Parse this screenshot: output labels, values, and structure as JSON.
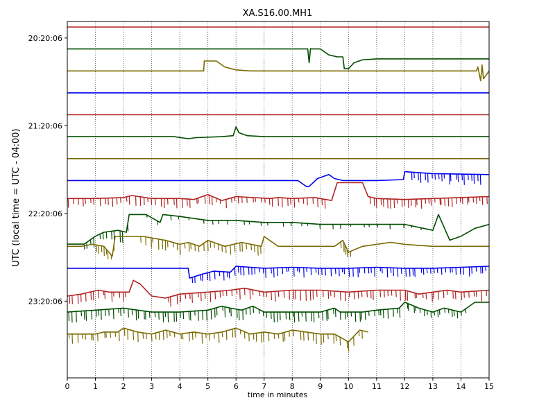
{
  "chart_data": {
    "type": "line",
    "title": "XA.S16.00.MH1",
    "xlabel": "time in minutes",
    "ylabel": "UTC (local time = UTC - 04:00)",
    "xlim": [
      0,
      15
    ],
    "x_ticks": [
      "0",
      "1",
      "2",
      "3",
      "4",
      "5",
      "6",
      "7",
      "8",
      "9",
      "10",
      "11",
      "12",
      "13",
      "14",
      "15"
    ],
    "y_ticks": [
      "20:20:06",
      "21:20:06",
      "22:20:06",
      "23:20:06"
    ],
    "y_tick_rows": [
      0.5,
      4.5,
      8.5,
      12.5
    ],
    "grid": "vertical dotted",
    "trace_colors": [
      "#b22222",
      "#004d00",
      "#7a6a00",
      "#0000ee"
    ],
    "traces": [
      {
        "start": "20:05:06",
        "color": "#b22222",
        "x_end": 15,
        "segments": [
          {
            "x": [
              0,
              15
            ],
            "y": [
              0,
              0
            ]
          }
        ],
        "noise": []
      },
      {
        "start": "20:20:06",
        "color": "#004d00",
        "x_end": 15,
        "segments": [
          {
            "x": [
              0,
              8.55,
              8.6,
              8.65,
              8.7,
              9.0,
              9.3,
              9.6,
              9.8,
              9.85,
              10.0,
              10.2,
              10.5,
              11,
              12,
              15
            ],
            "y": [
              0,
              0,
              -0.7,
              0.02,
              0,
              0,
              -0.3,
              -0.4,
              -0.4,
              -1.0,
              -1.0,
              -0.7,
              -0.55,
              -0.5,
              -0.5,
              -0.5
            ]
          }
        ],
        "noise": []
      },
      {
        "start": "20:35:06",
        "color": "#7a6a00",
        "x_end": 15,
        "segments": [
          {
            "x": [
              0,
              4.85,
              4.87,
              5.3,
              5.6,
              6.0,
              6.5,
              14.55,
              14.6,
              14.7,
              14.75,
              14.8,
              15
            ],
            "y": [
              0,
              0,
              0.5,
              0.5,
              0.2,
              0.05,
              0,
              0,
              0.2,
              -0.5,
              0.3,
              -0.4,
              0
            ]
          }
        ],
        "noise": []
      },
      {
        "start": "20:50:06",
        "color": "#0000ee",
        "x_end": 15,
        "segments": [
          {
            "x": [
              0,
              15
            ],
            "y": [
              0,
              0
            ]
          }
        ],
        "noise": []
      },
      {
        "start": "21:05:06",
        "color": "#b22222",
        "x_end": 15,
        "segments": [
          {
            "x": [
              0,
              15
            ],
            "y": [
              0,
              0
            ]
          }
        ],
        "noise": []
      },
      {
        "start": "21:20:06",
        "color": "#004d00",
        "x_end": 15,
        "segments": [
          {
            "x": [
              0,
              3.8,
              4.3,
              4.6,
              5.5,
              5.9,
              6.0,
              6.1,
              6.4,
              7.0,
              8,
              15
            ],
            "y": [
              0,
              0,
              -0.1,
              -0.05,
              0,
              0.05,
              0.5,
              0.2,
              0.05,
              0,
              0,
              0
            ]
          }
        ],
        "noise": []
      },
      {
        "start": "21:35:06",
        "color": "#7a6a00",
        "x_end": 15,
        "segments": [
          {
            "x": [
              0,
              15
            ],
            "y": [
              0,
              0
            ]
          }
        ],
        "noise": []
      },
      {
        "start": "21:50:06",
        "color": "#0000ee",
        "x_end": 15,
        "segments": [
          {
            "x": [
              0,
              4,
              8.2,
              8.5,
              8.6,
              8.9,
              9.3,
              9.5,
              9.8,
              11,
              11.95,
              12.0,
              13,
              15
            ],
            "y": [
              0,
              0,
              0,
              -0.3,
              -0.3,
              0.1,
              0.3,
              0.1,
              0,
              0,
              0.05,
              0.45,
              0.35,
              0.3
            ]
          }
        ],
        "noise": [
          {
            "x0": 12.2,
            "x1": 14.8,
            "count": 22,
            "amp": -0.55
          }
        ]
      },
      {
        "start": "22:05:06",
        "color": "#b22222",
        "x_end": 15,
        "segments": [
          {
            "x": [
              0,
              1,
              2,
              2.3,
              3,
              4,
              4.5,
              5.0,
              5.5,
              6,
              7.2,
              7.5,
              8,
              8.8,
              9.4,
              9.6,
              10.5,
              10.7,
              11,
              12,
              13,
              14,
              15
            ],
            "y": [
              0.2,
              0.2,
              0.25,
              0.35,
              0.2,
              0.2,
              0.15,
              0.4,
              0.1,
              0.3,
              0.2,
              0.25,
              0.2,
              0.25,
              0.1,
              1.0,
              1.0,
              0.3,
              0.2,
              0.15,
              0.2,
              0.25,
              0.3
            ]
          }
        ],
        "noise": [
          {
            "x0": 0,
            "x1": 9.3,
            "count": 60,
            "amp": -0.5
          },
          {
            "x0": 10.7,
            "x1": 15,
            "count": 35,
            "amp": -0.5
          }
        ]
      },
      {
        "start": "22:20:06",
        "color": "#004d00",
        "x_end": 15,
        "segments": [
          {
            "x": [
              0,
              0.6,
              1.0,
              1.3,
              1.8,
              2.1,
              2.2,
              2.8,
              3.3,
              3.4,
              4.0,
              5.0,
              6,
              7,
              8,
              9,
              10,
              11,
              12,
              13,
              13.2,
              13.6,
              14.0,
              14.5,
              15
            ],
            "y": [
              -1.0,
              -1.0,
              -0.6,
              -0.4,
              -0.3,
              -0.4,
              0.5,
              0.5,
              0.1,
              0.5,
              0.4,
              0.2,
              0.2,
              0.1,
              0.1,
              0.0,
              0.0,
              0.0,
              0.0,
              -0.3,
              0.5,
              -0.8,
              -0.6,
              -0.2,
              0.0
            ]
          }
        ],
        "noise": [
          {
            "x0": 0.5,
            "x1": 2.2,
            "count": 12,
            "amp": -0.6
          },
          {
            "x0": 2.8,
            "x1": 12.8,
            "count": 28,
            "amp": -0.25
          }
        ]
      },
      {
        "start": "22:35:06",
        "color": "#7a6a00",
        "x_end": 15,
        "segments": [
          {
            "x": [
              0,
              0.5,
              0.9,
              1.3,
              1.6,
              1.7,
              2.6,
              2.7,
              3.5,
              4,
              4.3,
              4.7,
              5.0,
              5.6,
              6.2,
              6.9,
              7.0,
              7.5,
              9.5,
              9.8,
              10.0,
              10.5,
              11.5,
              12,
              13,
              14,
              15
            ],
            "y": [
              0,
              0,
              0.1,
              0,
              -0.5,
              0.5,
              0.5,
              0.5,
              0.3,
              0.1,
              0.2,
              0.0,
              0.3,
              0.0,
              0.2,
              0.0,
              0.5,
              0.0,
              0.0,
              0.3,
              -0.3,
              0.0,
              0.2,
              0.1,
              0.0,
              0.0,
              0.0
            ]
          }
        ],
        "noise": [
          {
            "x0": 1.0,
            "x1": 1.7,
            "count": 8,
            "amp": -0.6
          },
          {
            "x0": 2.6,
            "x1": 7.0,
            "count": 32,
            "amp": -0.55
          },
          {
            "x0": 9.7,
            "x1": 10.1,
            "count": 5,
            "amp": -0.6
          }
        ]
      },
      {
        "start": "22:50:06",
        "color": "#0000ee",
        "x_end": 15,
        "segments": [
          {
            "x": [
              0,
              4.3,
              4.35,
              4.8,
              5.2,
              5.8,
              6.0,
              7,
              8,
              9,
              10,
              11,
              12,
              13,
              14,
              15
            ],
            "y": [
              0,
              0,
              -0.5,
              -0.3,
              -0.15,
              -0.2,
              0.1,
              0.0,
              0.05,
              0.0,
              0.0,
              0.05,
              0.0,
              0.0,
              0.05,
              0.1
            ]
          }
        ],
        "noise": [
          {
            "x0": 4.4,
            "x1": 15,
            "count": 80,
            "amp": -0.5
          }
        ]
      },
      {
        "start": "23:05:06",
        "color": "#b22222",
        "x_end": 15,
        "segments": [
          {
            "x": [
              0,
              0.5,
              0.8,
              1.1,
              1.5,
              2.0,
              2.2,
              2.35,
              2.6,
              3.0,
              3.5,
              4.0,
              5.0,
              5.8,
              6.3,
              7,
              8,
              9,
              10,
              11,
              12,
              12.5,
              13.0,
              13.5,
              14.0,
              15
            ],
            "y": [
              -0.3,
              -0.2,
              -0.1,
              0.0,
              -0.1,
              -0.1,
              -0.1,
              0.5,
              0.3,
              -0.3,
              -0.4,
              -0.2,
              -0.1,
              0.0,
              0.1,
              -0.1,
              0.0,
              0.0,
              -0.1,
              0.0,
              0.0,
              -0.2,
              -0.1,
              0.0,
              -0.1,
              0.0
            ]
          }
        ],
        "noise": [
          {
            "x0": 0,
            "x1": 2.2,
            "count": 15,
            "amp": -0.5
          },
          {
            "x0": 3.5,
            "x1": 15,
            "count": 75,
            "amp": -0.55
          }
        ]
      },
      {
        "start": "23:20:06",
        "color": "#004d00",
        "x_end": 15,
        "segments": [
          {
            "x": [
              0,
              1,
              2,
              2.5,
              3,
              4,
              5,
              5.5,
              5.8,
              6.2,
              6.6,
              7,
              8,
              9,
              9.5,
              9.7,
              10.5,
              11,
              11.8,
              12,
              12.5,
              13.0,
              13.4,
              14.0,
              14.5,
              15
            ],
            "y": [
              0,
              0.1,
              0.2,
              0.1,
              0.0,
              0.0,
              0.1,
              0.3,
              0.2,
              0.1,
              0.3,
              0.0,
              0.0,
              0.0,
              0.2,
              0.0,
              0.0,
              0.1,
              0.2,
              0.5,
              0.2,
              0.0,
              0.2,
              0.0,
              0.5,
              0.5
            ]
          }
        ],
        "noise": [
          {
            "x0": 0,
            "x1": 11.9,
            "count": 90,
            "amp": -0.55
          },
          {
            "x0": 12.0,
            "x1": 14.2,
            "count": 18,
            "amp": -0.4
          }
        ]
      },
      {
        "start": "23:35:06",
        "color": "#7a6a00",
        "x_end": 10.7,
        "segments": [
          {
            "x": [
              0,
              0.5,
              1.0,
              1.3,
              1.8,
              2.0,
              2.5,
              3,
              3.5,
              4.0,
              4.5,
              5,
              5.5,
              6,
              6.5,
              7,
              7.5,
              8,
              8.5,
              9,
              9.5,
              10.0,
              10.4,
              10.7
            ],
            "y": [
              0,
              0,
              0.0,
              0.1,
              0.1,
              0.3,
              0.1,
              0.0,
              0.2,
              0.0,
              0.1,
              0.0,
              0.1,
              0.3,
              0.0,
              0.1,
              0.0,
              0.2,
              0.1,
              0.0,
              0.0,
              -0.4,
              0.2,
              0.1
            ]
          }
        ],
        "noise": [
          {
            "x0": 0,
            "x1": 10.6,
            "count": 70,
            "amp": -0.55
          }
        ]
      }
    ]
  }
}
